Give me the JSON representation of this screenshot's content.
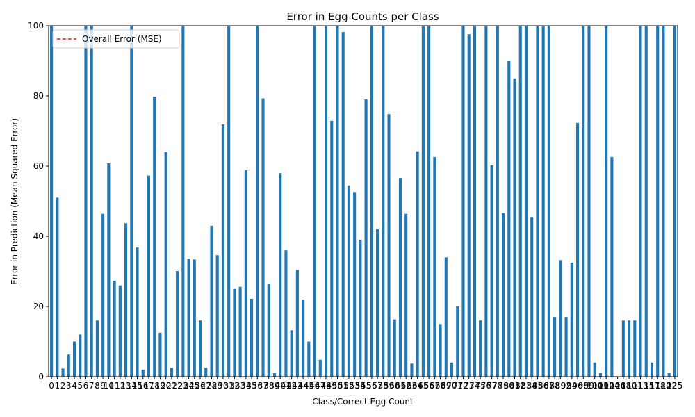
{
  "chart_data": {
    "type": "bar",
    "title": "Error in Egg Counts per Class",
    "x_label": "Class/Correct Egg Count",
    "y_label": "Error in Prediction (Mean Squared Error)",
    "categories": [
      "0",
      "1",
      "2",
      "3",
      "4",
      "5",
      "6",
      "7",
      "8",
      "9",
      "10",
      "11",
      "12",
      "13",
      "14",
      "15",
      "16",
      "17",
      "18",
      "19",
      "20",
      "21",
      "22",
      "23",
      "24",
      "25",
      "26",
      "27",
      "28",
      "29",
      "30",
      "31",
      "32",
      "33",
      "34",
      "35",
      "36",
      "37",
      "38",
      "39",
      "40",
      "41",
      "42",
      "43",
      "44",
      "45",
      "46",
      "47",
      "48",
      "49",
      "50",
      "51",
      "52",
      "53",
      "54",
      "55",
      "56",
      "57",
      "58",
      "59",
      "60",
      "61",
      "62",
      "63",
      "64",
      "65",
      "66",
      "67",
      "68",
      "69",
      "70",
      "71",
      "72",
      "73",
      "74",
      "75",
      "76",
      "77",
      "78",
      "79",
      "80",
      "81",
      "82",
      "83",
      "84",
      "85",
      "86",
      "87",
      "88",
      "89",
      "92",
      "94",
      "96",
      "98",
      "99",
      "100",
      "101",
      "102",
      "104",
      "106",
      "108",
      "110",
      "111",
      "113",
      "115",
      "117",
      "118",
      "120",
      "122",
      "125"
    ],
    "values": [
      100,
      51,
      2.3,
      6.3,
      10,
      12,
      100,
      100,
      16,
      46.4,
      60.8,
      27.3,
      26,
      43.7,
      100,
      36.8,
      2,
      57.3,
      79.8,
      12.5,
      64,
      2.5,
      30.1,
      100,
      33.6,
      33.4,
      16,
      2.5,
      43,
      34.6,
      71.9,
      100,
      25,
      25.6,
      58.8,
      22.2,
      100,
      79.3,
      26.5,
      1,
      58,
      36,
      13.2,
      30.4,
      22,
      10,
      100,
      4.8,
      100,
      72.9,
      100,
      98.2,
      54.5,
      52.6,
      39,
      79,
      100,
      42,
      100,
      74.8,
      16.3,
      56.6,
      46.4,
      3.7,
      64.2,
      100,
      100,
      62.6,
      15,
      34,
      4,
      20,
      100,
      97.6,
      100,
      16,
      100,
      60.2,
      100,
      46.6,
      89.9,
      85,
      100,
      100,
      45.5,
      100,
      100,
      100,
      17,
      33.2,
      17,
      32.5,
      72.3,
      100,
      100,
      4,
      1,
      100,
      62.6,
      0,
      16,
      16,
      16,
      100,
      100,
      4,
      100,
      100,
      1,
      100
    ],
    "color": "#1f77b4",
    "ylim": [
      0,
      100
    ],
    "yticks": [
      0,
      20,
      40,
      60,
      80,
      100
    ],
    "legend": {
      "name": "Overall Error (MSE)",
      "color": "#d62728",
      "position": "upper left"
    }
  }
}
